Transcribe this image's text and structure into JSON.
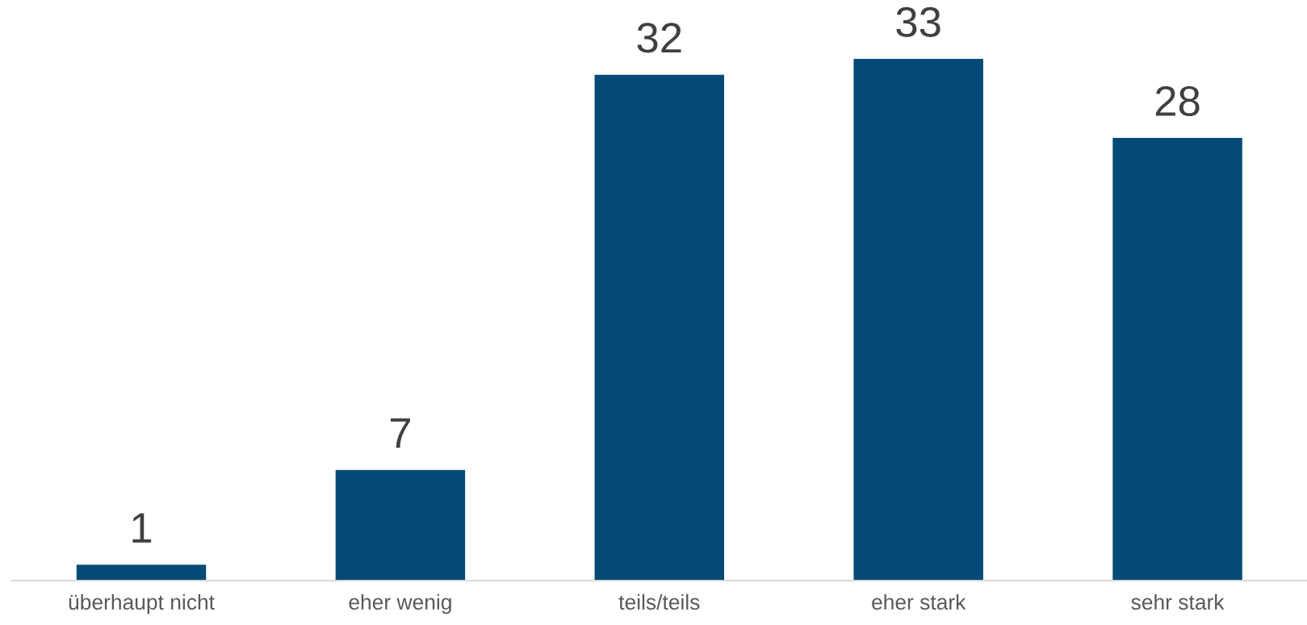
{
  "chart_data": {
    "type": "bar",
    "categories": [
      "überhaupt nicht",
      "eher wenig",
      "teils/teils",
      "eher stark",
      "sehr stark"
    ],
    "values": [
      1,
      7,
      32,
      33,
      28
    ],
    "color": "#034b76",
    "data_labels": true,
    "grid": false,
    "legend": false
  }
}
